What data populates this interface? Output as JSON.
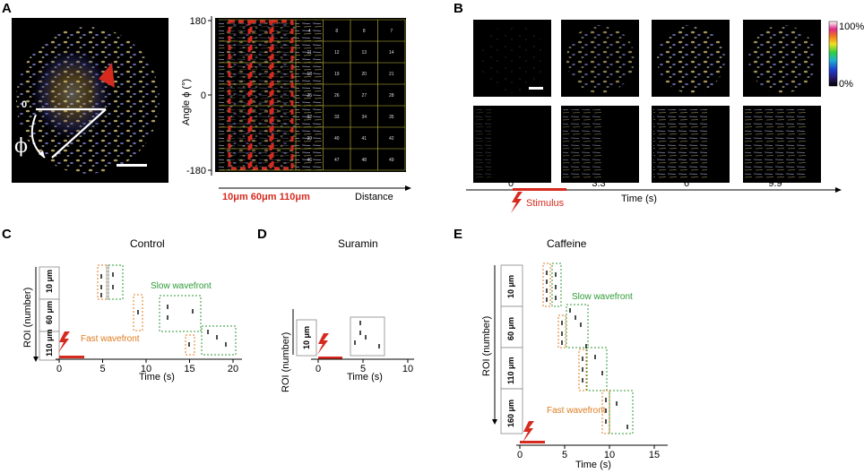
{
  "panelA": {
    "letter": "A",
    "zero_label": "0",
    "phi_label": "ϕ",
    "y_axis_label": "Angle ϕ (°)",
    "y_ticks": [
      "180",
      "0",
      "-180"
    ],
    "x_axis_label": "Distance",
    "distance_labels": "10μm 60μm 110μm",
    "grid_numbers": [
      "4",
      "8",
      "8",
      "7",
      "11",
      "12",
      "13",
      "14",
      "18",
      "19",
      "20",
      "21",
      "25",
      "26",
      "27",
      "28",
      "32",
      "33",
      "34",
      "35",
      "39",
      "40",
      "41",
      "42",
      "46",
      "47",
      "48",
      "49"
    ]
  },
  "panelB": {
    "letter": "B",
    "colorbar_top": "100%",
    "colorbar_bottom": "0%",
    "time_ticks": [
      "0",
      "3.3",
      "6",
      "9.9"
    ],
    "x_axis_label": "Time (s)",
    "stimulus_label": "Stimulus"
  },
  "panelC": {
    "letter": "C",
    "title": "Control",
    "y_axis_label": "ROI (number)",
    "roi_labels": [
      "10 μm",
      "60 μm",
      "110 μm"
    ],
    "x_ticks": [
      "0",
      "5",
      "10",
      "15",
      "20"
    ],
    "x_axis_label": "Time (s)",
    "slow_label": "Slow wavefront",
    "fast_label": "Fast wavefront"
  },
  "panelD": {
    "letter": "D",
    "title": "Suramin",
    "y_axis_label": "ROI (number)",
    "roi_labels": [
      "10 μm"
    ],
    "x_ticks": [
      "0",
      "5",
      "10"
    ],
    "x_axis_label": "Time (s)"
  },
  "panelE": {
    "letter": "E",
    "title": "Caffeine",
    "y_axis_label": "ROI (number)",
    "roi_labels": [
      "10 μm",
      "60 μm",
      "110 μm",
      "160 μm"
    ],
    "x_ticks": [
      "0",
      "5",
      "10",
      "15"
    ],
    "x_axis_label": "Time (s)",
    "slow_label": "Slow wavefront",
    "fast_label": "Fast wavefront"
  },
  "colors": {
    "stimulus_red": "#d62a1f",
    "fast_orange": "#e07b1f",
    "slow_green": "#2c9a35"
  }
}
